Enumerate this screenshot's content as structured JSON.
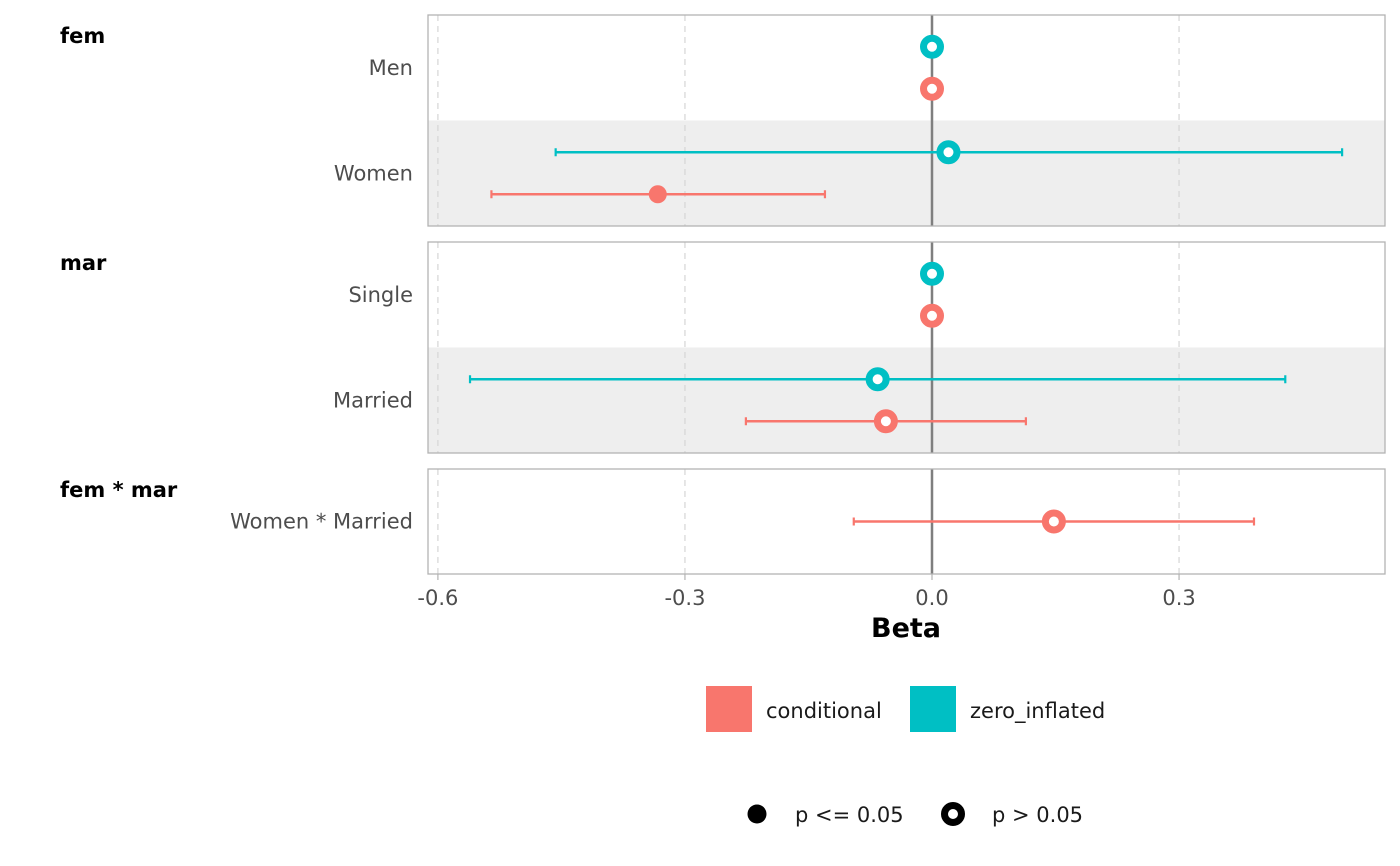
{
  "chart_data": {
    "type": "scatter",
    "subtype": "forest-plot",
    "title": "",
    "xlabel": "Beta",
    "ylabel": "",
    "xlim": [
      -0.62,
      0.58
    ],
    "xticks": [
      -0.6,
      -0.3,
      0.0,
      0.3
    ],
    "xtick_labels": [
      "-0.6",
      "-0.3",
      "0.0",
      "0.3"
    ],
    "reference_line": 0.0,
    "grid": true,
    "colors": {
      "conditional": "#F8766D",
      "zero_inflated": "#00BFC4"
    },
    "facets": [
      {
        "title": "fem",
        "terms": [
          {
            "label": "Men",
            "points": [
              {
                "component": "zero_inflated",
                "estimate": 0.0,
                "ci_low": null,
                "ci_high": null,
                "significant": false
              },
              {
                "component": "conditional",
                "estimate": 0.0,
                "ci_low": null,
                "ci_high": null,
                "significant": false
              }
            ]
          },
          {
            "label": "Women",
            "points": [
              {
                "component": "zero_inflated",
                "estimate": 0.02,
                "ci_low": -0.457,
                "ci_high": 0.498,
                "significant": false
              },
              {
                "component": "conditional",
                "estimate": -0.333,
                "ci_low": -0.535,
                "ci_high": -0.13,
                "significant": true
              }
            ]
          }
        ]
      },
      {
        "title": "mar",
        "terms": [
          {
            "label": "Single",
            "points": [
              {
                "component": "zero_inflated",
                "estimate": 0.0,
                "ci_low": null,
                "ci_high": null,
                "significant": false
              },
              {
                "component": "conditional",
                "estimate": 0.0,
                "ci_low": null,
                "ci_high": null,
                "significant": false
              }
            ]
          },
          {
            "label": "Married",
            "points": [
              {
                "component": "zero_inflated",
                "estimate": -0.066,
                "ci_low": -0.561,
                "ci_high": 0.429,
                "significant": false
              },
              {
                "component": "conditional",
                "estimate": -0.056,
                "ci_low": -0.226,
                "ci_high": 0.114,
                "significant": false
              }
            ]
          }
        ]
      },
      {
        "title": "fem * mar",
        "terms": [
          {
            "label": "Women * Married",
            "points": [
              {
                "component": "conditional",
                "estimate": 0.148,
                "ci_low": -0.095,
                "ci_high": 0.391,
                "significant": false
              }
            ]
          }
        ]
      }
    ],
    "legend": {
      "placement": "bottom",
      "component_entries": [
        {
          "key": "conditional",
          "label": "conditional",
          "color": "#F8766D"
        },
        {
          "key": "zero_inflated",
          "label": "zero_inflated",
          "color": "#00BFC4"
        }
      ],
      "significance_entries": [
        {
          "key": "sig",
          "label": "p <= 0.05",
          "shape": "filled-circle"
        },
        {
          "key": "nonsig",
          "label": "p > 0.05",
          "shape": "hollow-circle"
        }
      ]
    }
  }
}
